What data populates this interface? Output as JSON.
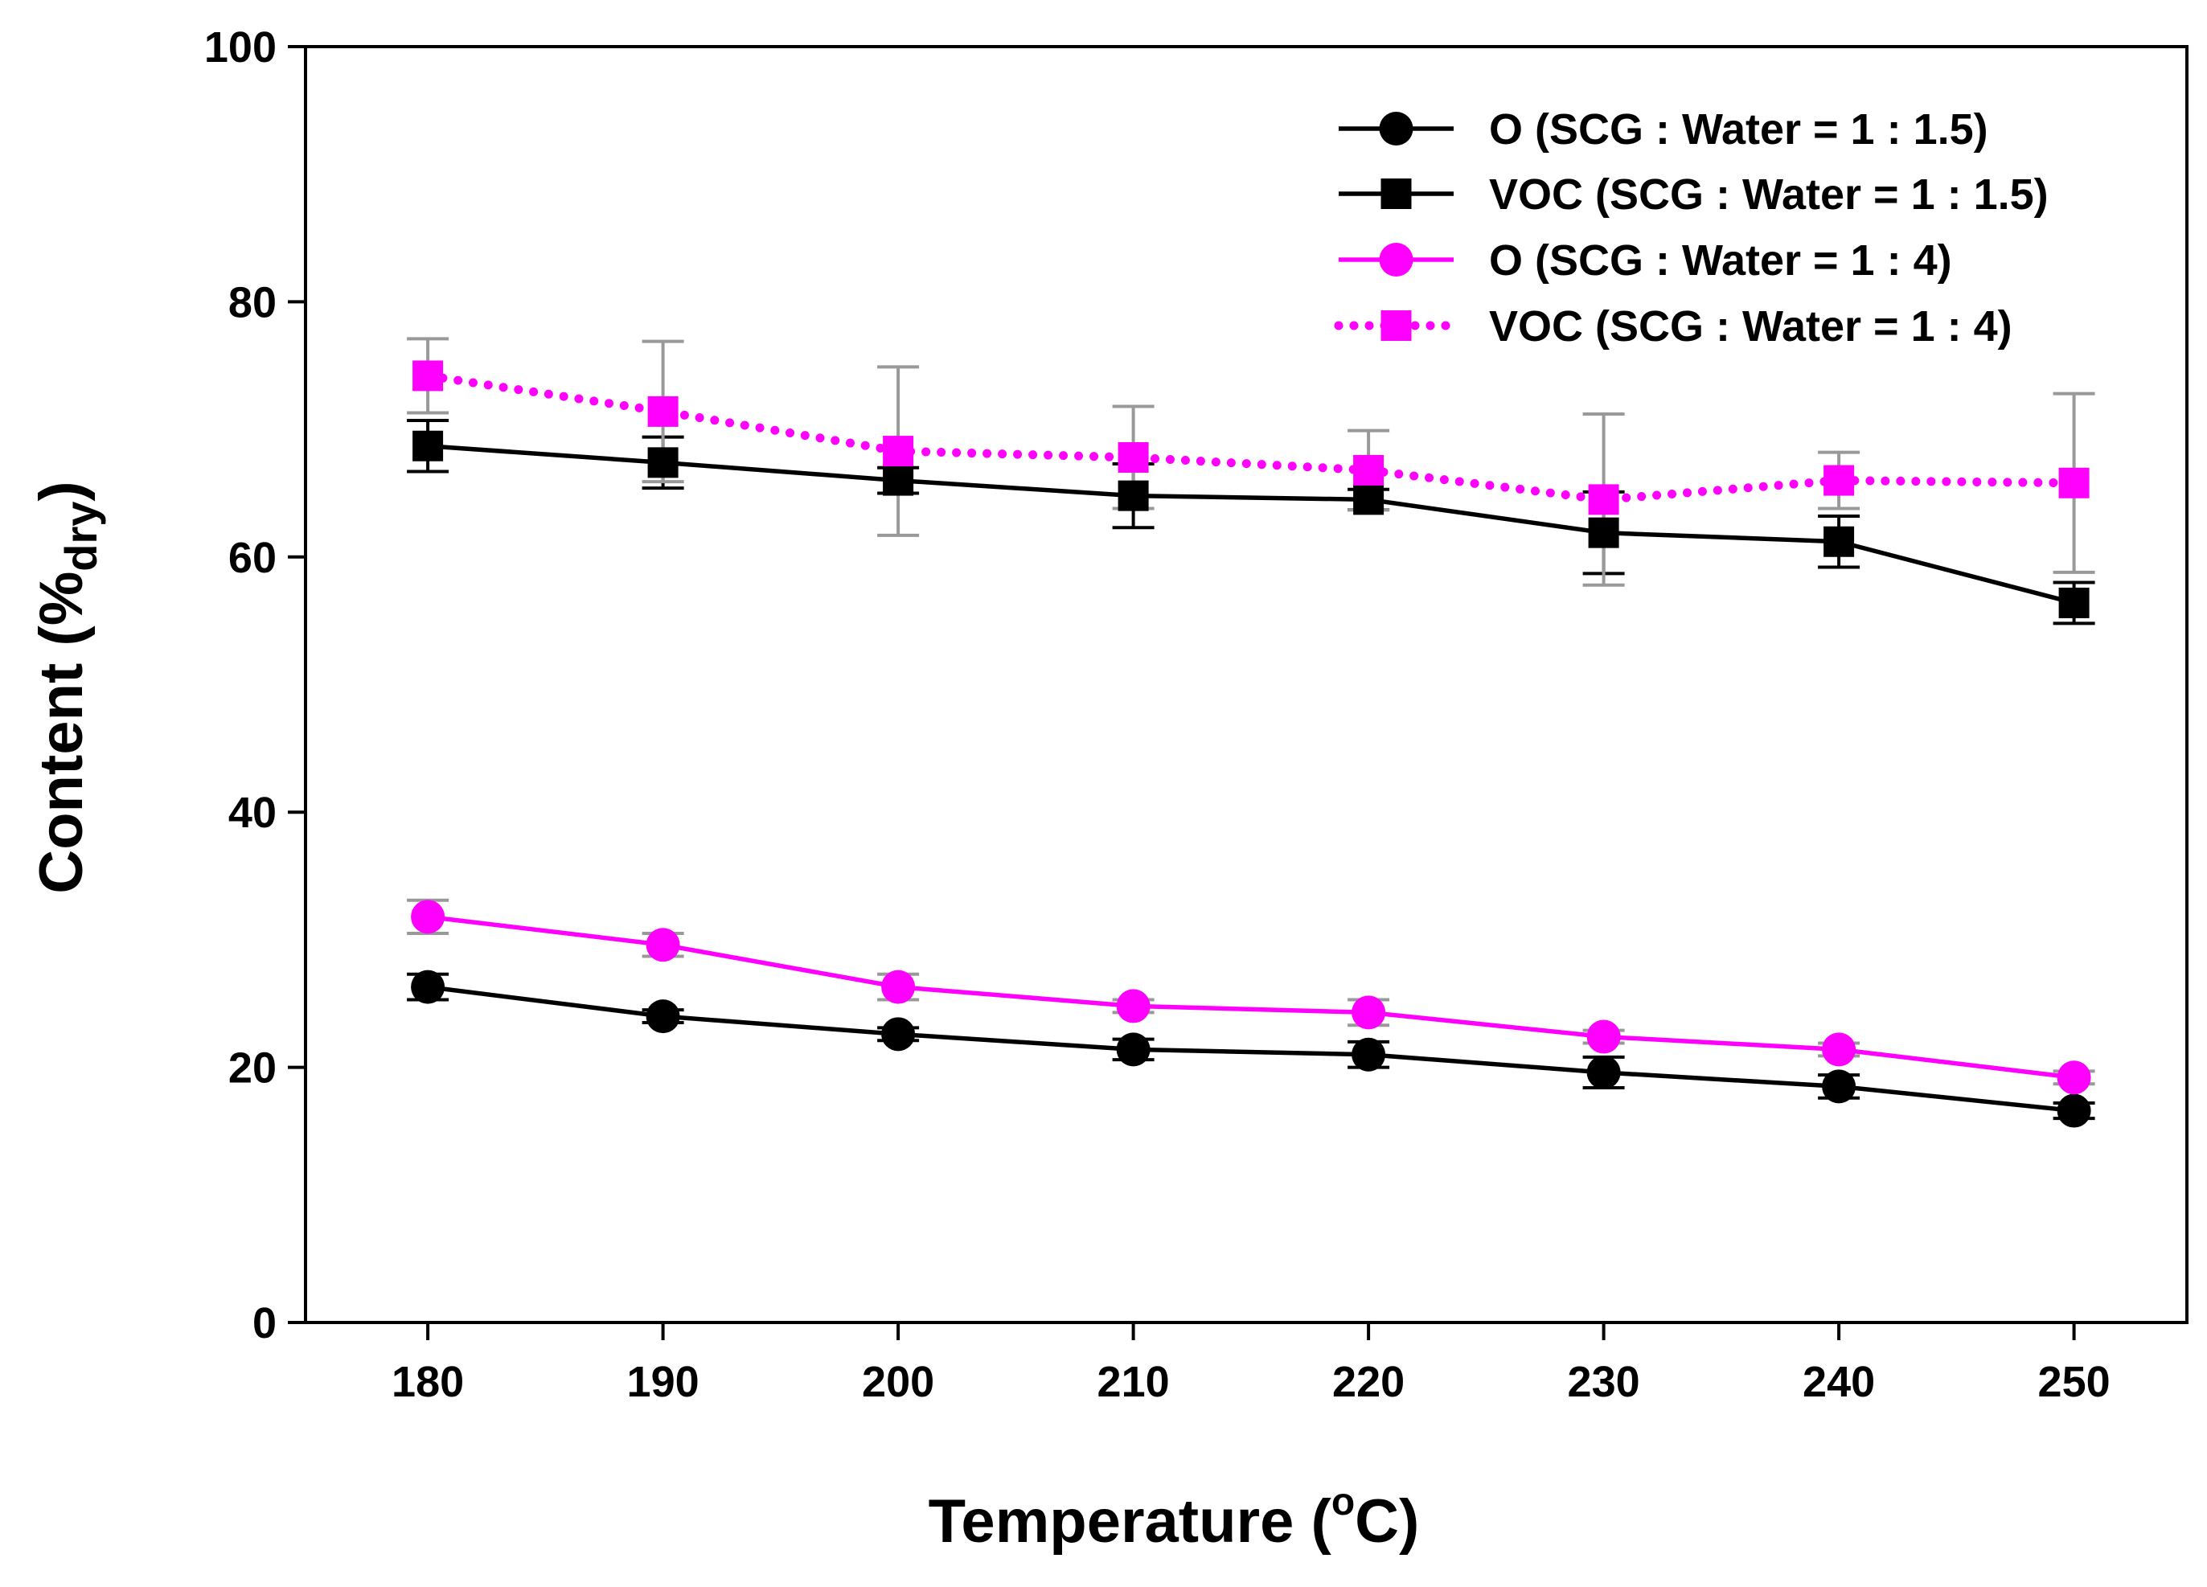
{
  "chart_data": {
    "type": "line",
    "title": "",
    "xlabel": "Temperature (oC)",
    "xlabel_parts": {
      "main": "Temperature (",
      "sup": "o",
      "end": "C)"
    },
    "ylabel": "Content (%dry)",
    "ylabel_parts": {
      "main": "Content (%",
      "sub": "dry",
      "end": ")"
    },
    "x": [
      180,
      190,
      200,
      210,
      220,
      230,
      240,
      250
    ],
    "xticks": [
      "180",
      "190",
      "200",
      "210",
      "220",
      "230",
      "240",
      "250"
    ],
    "yticks": [
      "0",
      "20",
      "40",
      "60",
      "80",
      "100"
    ],
    "xlim": [
      174.8,
      254.8
    ],
    "ylim": [
      0,
      100
    ],
    "legend_position": "top-right",
    "series": [
      {
        "name": "O (SCG : Water = 1 : 1.5)",
        "color": "#000000",
        "marker": "circle",
        "line": "solid",
        "error_color": "#000000",
        "values": [
          26.3,
          24.0,
          22.6,
          21.4,
          21.0,
          19.6,
          18.5,
          16.6
        ],
        "errors": [
          1.0,
          0.5,
          0.5,
          0.8,
          1.0,
          1.2,
          0.9,
          0.6
        ]
      },
      {
        "name": "VOC (SCG : Water = 1 : 1.5)",
        "color": "#000000",
        "marker": "square",
        "line": "solid",
        "error_color": "#000000",
        "values": [
          68.7,
          67.4,
          66.0,
          64.8,
          64.5,
          61.9,
          61.2,
          56.4
        ],
        "errors": [
          2.0,
          2.0,
          1.0,
          2.5,
          0.8,
          3.2,
          2.0,
          1.6
        ]
      },
      {
        "name": "O (SCG : Water = 1 : 4)",
        "color": "#ff00ff",
        "marker": "circle",
        "line": "solid",
        "error_color": "#999999",
        "values": [
          31.8,
          29.6,
          26.3,
          24.8,
          24.3,
          22.4,
          21.4,
          19.2
        ],
        "errors": [
          1.3,
          0.9,
          1.0,
          0.5,
          1.0,
          0.5,
          0.5,
          0.5
        ]
      },
      {
        "name": "VOC (SCG : Water = 1 : 4)",
        "color": "#ff00ff",
        "marker": "square",
        "line": "dotted",
        "error_color": "#999999",
        "values": [
          74.2,
          71.4,
          68.3,
          67.8,
          66.8,
          64.5,
          66.0,
          65.8
        ],
        "errors": [
          2.9,
          5.5,
          6.6,
          4.0,
          3.1,
          6.7,
          2.2,
          7.0
        ]
      }
    ]
  }
}
